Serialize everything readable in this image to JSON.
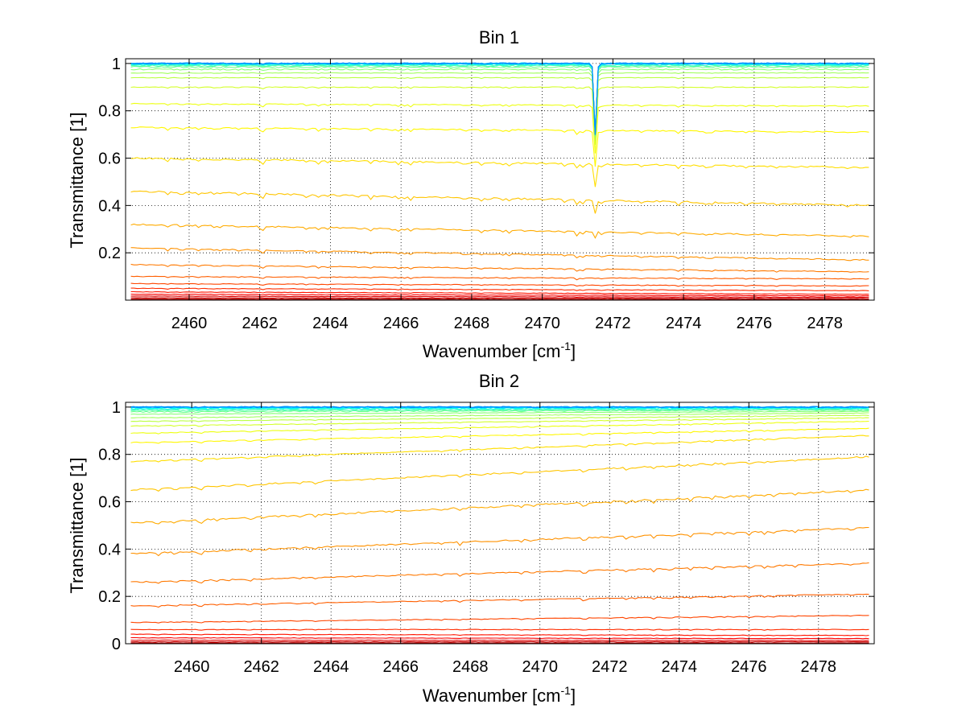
{
  "figure": {
    "background": "#ffffff"
  },
  "chart_data": [
    {
      "type": "line",
      "title": "Bin 1",
      "xlabel_base": "Wavenumber [cm",
      "xlabel_sup": "-1",
      "xlabel_end": "]",
      "ylabel": "Transmittance [1]",
      "xlim": [
        2458.2,
        2479.4
      ],
      "ylim": [
        0,
        1.02
      ],
      "xticks": [
        2460,
        2462,
        2464,
        2466,
        2468,
        2470,
        2472,
        2474,
        2476,
        2478
      ],
      "xtick_labels": [
        "2460",
        "2462",
        "2464",
        "2466",
        "2468",
        "2470",
        "2472",
        "2474",
        "2476",
        "2478"
      ],
      "yticks": [
        0.2,
        0.4,
        0.6,
        0.8,
        1.0
      ],
      "ytick_labels": [
        "0.2",
        "0.4",
        "0.6",
        "0.8",
        "1"
      ],
      "grid": true,
      "series_count": 30,
      "series_levels_start": [
        0.0,
        0.005,
        0.01,
        0.017,
        0.025,
        0.035,
        0.05,
        0.07,
        0.1,
        0.15,
        0.22,
        0.32,
        0.46,
        0.6,
        0.73,
        0.83,
        0.9,
        0.94,
        0.96,
        0.975,
        0.985,
        0.99,
        0.993,
        0.996,
        0.998,
        0.999,
        1.0,
        1.0,
        1.0,
        1.0
      ],
      "series_levels_end": [
        0.0,
        0.003,
        0.007,
        0.012,
        0.018,
        0.025,
        0.04,
        0.06,
        0.09,
        0.12,
        0.17,
        0.27,
        0.4,
        0.56,
        0.71,
        0.82,
        0.9,
        0.94,
        0.96,
        0.975,
        0.985,
        0.99,
        0.993,
        0.996,
        0.998,
        0.999,
        1.0,
        1.0,
        1.0,
        1.0
      ],
      "absorption_line": {
        "x": 2471.5,
        "max_relative_depth": 0.3
      }
    },
    {
      "type": "line",
      "title": "Bin 2",
      "xlabel_base": "Wavenumber [cm",
      "xlabel_sup": "-1",
      "xlabel_end": "]",
      "ylabel": "Transmittance [1]",
      "xlim": [
        2458.1,
        2479.6
      ],
      "ylim": [
        0,
        1.02
      ],
      "xticks": [
        2460,
        2462,
        2464,
        2466,
        2468,
        2470,
        2472,
        2474,
        2476,
        2478
      ],
      "xtick_labels": [
        "2460",
        "2462",
        "2464",
        "2466",
        "2468",
        "2470",
        "2472",
        "2474",
        "2476",
        "2478"
      ],
      "yticks": [
        0,
        0.2,
        0.4,
        0.6,
        0.8,
        1.0
      ],
      "ytick_labels": [
        "0",
        "0.2",
        "0.4",
        "0.6",
        "0.8",
        "1"
      ],
      "grid": true,
      "series_count": 30,
      "series_levels_start": [
        0.0,
        0.003,
        0.008,
        0.015,
        0.025,
        0.04,
        0.06,
        0.09,
        0.16,
        0.26,
        0.38,
        0.51,
        0.65,
        0.77,
        0.85,
        0.89,
        0.92,
        0.94,
        0.955,
        0.97,
        0.98,
        0.985,
        0.99,
        0.993,
        0.996,
        0.998,
        0.999,
        1.0,
        1.0,
        1.0
      ],
      "series_levels_end": [
        0.0,
        0.003,
        0.008,
        0.014,
        0.022,
        0.035,
        0.06,
        0.12,
        0.21,
        0.34,
        0.49,
        0.65,
        0.79,
        0.88,
        0.91,
        0.94,
        0.955,
        0.965,
        0.975,
        0.982,
        0.987,
        0.99,
        0.993,
        0.995,
        0.997,
        0.998,
        0.999,
        1.0,
        1.0,
        1.0
      ],
      "absorption_line": null
    }
  ]
}
